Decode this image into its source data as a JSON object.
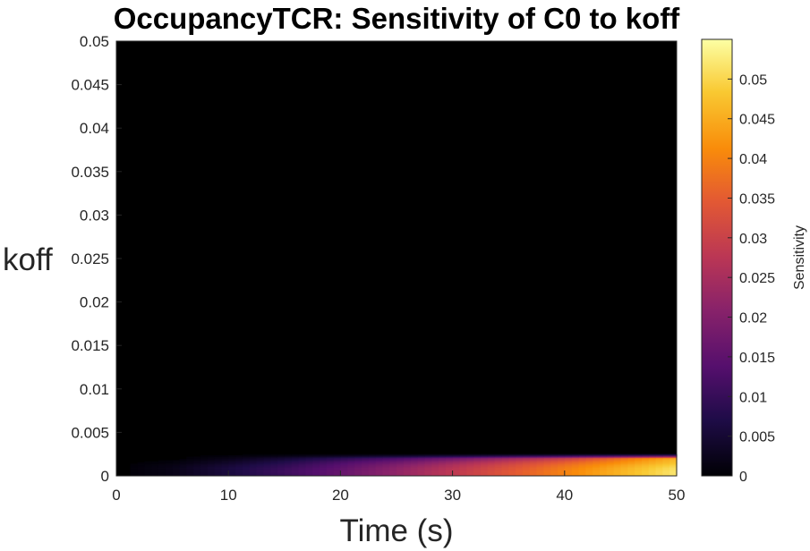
{
  "chart_data": {
    "type": "heatmap",
    "title": "OccupancyTCR: Sensitivity of C0 to koff",
    "xlabel": "Time (s)",
    "ylabel": "koff",
    "colorbar_label": "Sensitivity",
    "colormap": "inferno",
    "background_color": "#000000",
    "xlim": [
      0,
      50
    ],
    "ylim": [
      0,
      0.05
    ],
    "clim": [
      0,
      0.055
    ],
    "xticks": [
      "0",
      "10",
      "20",
      "30",
      "40",
      "50"
    ],
    "yticks": [
      "0",
      "0.005",
      "0.01",
      "0.015",
      "0.02",
      "0.025",
      "0.03",
      "0.035",
      "0.04",
      "0.045",
      "0.05"
    ],
    "cbticks": [
      "0",
      "0.005",
      "0.01",
      "0.015",
      "0.02",
      "0.025",
      "0.03",
      "0.035",
      "0.04",
      "0.045",
      "0.05"
    ],
    "koff_values": [
      0,
      0.0005,
      0.001,
      0.0015,
      0.002,
      0.0025
    ],
    "time_values": [
      0,
      5,
      10,
      15,
      20,
      25,
      30,
      35,
      40,
      45,
      50
    ],
    "sensitivity": [
      [
        0,
        0.002,
        0.006,
        0.01,
        0.016,
        0.022,
        0.028,
        0.034,
        0.04,
        0.046,
        0.052
      ],
      [
        0,
        0.002,
        0.006,
        0.011,
        0.016,
        0.022,
        0.028,
        0.034,
        0.04,
        0.046,
        0.052
      ],
      [
        0,
        0.002,
        0.006,
        0.01,
        0.015,
        0.021,
        0.027,
        0.033,
        0.039,
        0.045,
        0.051
      ],
      [
        0,
        0.001,
        0.004,
        0.008,
        0.013,
        0.018,
        0.024,
        0.03,
        0.036,
        0.042,
        0.048
      ],
      [
        0,
        0.0,
        0.002,
        0.005,
        0.009,
        0.013,
        0.018,
        0.024,
        0.03,
        0.038,
        0.046
      ],
      [
        0,
        0.0,
        0.0,
        0.0,
        0.0,
        0.0,
        0.0,
        0.0,
        0.0,
        0.0,
        0.0
      ]
    ]
  }
}
